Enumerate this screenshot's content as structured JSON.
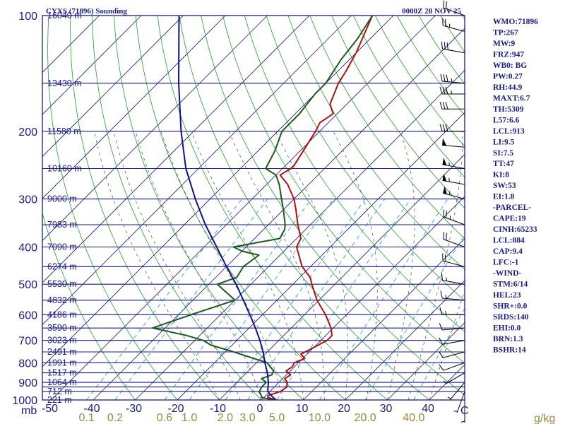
{
  "header": {
    "station_title": "CYXS (71896) Sounding",
    "datetime": "0000Z 28 NOV 25"
  },
  "indices": [
    "WMO:71896",
    "TP:267",
    "MW:9",
    "FRZ:947",
    "WB0: BG",
    "PW:0.27",
    "RH:44.9",
    "MAXT:6.7",
    "TH:5309",
    "L57:6.6",
    "LCL:913",
    "LI:9.5",
    "SI:7.5",
    "TT:47",
    "KI:8",
    "SW:53",
    "EI:1.8",
    "-PARCEL-",
    "CAPE:19",
    "CINH:65233",
    "LCL:884",
    "CAP:9.4",
    "LFC:-1",
    "-WIND-",
    "STM:6/14",
    "HEL:23",
    "SHR+:0.0",
    "SRDS:140",
    "EHI:0.0",
    "BRN:1.3",
    "BSHR:14"
  ],
  "chart_data": {
    "type": "skew-t log-p",
    "pressure_labels": [
      "100",
      "200",
      "300",
      "400",
      "500",
      "600",
      "700",
      "800",
      "900",
      "1000"
    ],
    "pressure_levels": [
      100,
      150,
      200,
      250,
      300,
      350,
      400,
      450,
      500,
      550,
      600,
      650,
      700,
      750,
      800,
      850,
      900,
      925,
      950,
      1000
    ],
    "y_unit_label": "mb",
    "height_labels": [
      {
        "p": 100,
        "text": "16040 m"
      },
      {
        "p": 150,
        "text": "13430 m"
      },
      {
        "p": 200,
        "text": "11580 m"
      },
      {
        "p": 250,
        "text": "10160 m"
      },
      {
        "p": 300,
        "text": "9000 m"
      },
      {
        "p": 350,
        "text": "7983 m"
      },
      {
        "p": 400,
        "text": "7090 m"
      },
      {
        "p": 450,
        "text": "6274 m"
      },
      {
        "p": 500,
        "text": "5530 m"
      },
      {
        "p": 550,
        "text": "4832 m"
      },
      {
        "p": 600,
        "text": "4186 m"
      },
      {
        "p": 650,
        "text": "3590 m"
      },
      {
        "p": 700,
        "text": "3023 m"
      },
      {
        "p": 750,
        "text": "2491 m"
      },
      {
        "p": 800,
        "text": "1991 m"
      },
      {
        "p": 850,
        "text": "1517 m"
      },
      {
        "p": 900,
        "text": "1064 m"
      },
      {
        "p": 950,
        "text": "712 m"
      },
      {
        "p": 1000,
        "text": "221 m"
      }
    ],
    "temperature_ticks": [
      "-50",
      "-40",
      "-30",
      "-20",
      "-10",
      "0",
      "10",
      "20",
      "30",
      "40"
    ],
    "temperature_tick_values": [
      -50,
      -40,
      -30,
      -20,
      -10,
      0,
      10,
      20,
      30,
      40
    ],
    "x_unit_label": "C",
    "mixing_ratio_ticks": [
      {
        "w": 0.1,
        "text": "0.1"
      },
      {
        "w": 0.2,
        "text": "0.2"
      },
      {
        "w": 0.6,
        "text": "0.6"
      },
      {
        "w": 1.0,
        "text": "1.0"
      },
      {
        "w": 2.0,
        "text": "2.0"
      },
      {
        "w": 3.0,
        "text": "3.0"
      },
      {
        "w": 5.0,
        "text": "5.0"
      },
      {
        "w": 10.0,
        "text": "10.0"
      },
      {
        "w": 20.0,
        "text": "20.0"
      },
      {
        "w": 40.0,
        "text": "40.0"
      }
    ],
    "mixing_ratio_unit": "g/kg",
    "xlim": [
      -50,
      50
    ],
    "ylim": [
      1000,
      100
    ],
    "series": [
      {
        "name": "temperature",
        "color": "#b01010",
        "points": [
          [
            1000,
            3.5
          ],
          [
            985,
            1.0
          ],
          [
            975,
            0.5
          ],
          [
            950,
            2.5
          ],
          [
            925,
            3.0
          ],
          [
            900,
            2.0
          ],
          [
            880,
            0.5
          ],
          [
            860,
            1.0
          ],
          [
            840,
            -1.0
          ],
          [
            820,
            -0.5
          ],
          [
            800,
            -1.0
          ],
          [
            780,
            0.5
          ],
          [
            760,
            -1.5
          ],
          [
            740,
            -0.5
          ],
          [
            700,
            1.5
          ],
          [
            680,
            1.5
          ],
          [
            650,
            -0.5
          ],
          [
            600,
            -5.0
          ],
          [
            550,
            -10.5
          ],
          [
            500,
            -15.5
          ],
          [
            480,
            -17.5
          ],
          [
            450,
            -22.0
          ],
          [
            420,
            -25.5
          ],
          [
            400,
            -28.0
          ],
          [
            380,
            -29.0
          ],
          [
            350,
            -33.0
          ],
          [
            320,
            -37.0
          ],
          [
            300,
            -40.0
          ],
          [
            275,
            -45.0
          ],
          [
            260,
            -49.0
          ],
          [
            250,
            -48.0
          ],
          [
            245,
            -48.0
          ],
          [
            200,
            -51.0
          ],
          [
            190,
            -52.0
          ],
          [
            180,
            -51.0
          ],
          [
            170,
            -54.0
          ],
          [
            150,
            -57.0
          ],
          [
            140,
            -58.0
          ],
          [
            125,
            -60.0
          ],
          [
            100,
            -65.0
          ]
        ]
      },
      {
        "name": "dewpoint",
        "color": "#1a5a1a",
        "points": [
          [
            1000,
            3.0
          ],
          [
            985,
            -0.5
          ],
          [
            975,
            -1.0
          ],
          [
            950,
            -2.5
          ],
          [
            925,
            -3.0
          ],
          [
            900,
            -3.0
          ],
          [
            880,
            -5.0
          ],
          [
            860,
            -3.5
          ],
          [
            840,
            -4.0
          ],
          [
            800,
            -7.5
          ],
          [
            750,
            -18.0
          ],
          [
            720,
            -25.0
          ],
          [
            700,
            -28.0
          ],
          [
            680,
            -33.0
          ],
          [
            650,
            -43.0
          ],
          [
            600,
            -37.0
          ],
          [
            550,
            -30.0
          ],
          [
            500,
            -38.0
          ],
          [
            480,
            -35.0
          ],
          [
            450,
            -36.0
          ],
          [
            420,
            -35.0
          ],
          [
            410,
            -40.0
          ],
          [
            400,
            -43.0
          ],
          [
            380,
            -34.0
          ],
          [
            360,
            -35.0
          ],
          [
            350,
            -36.0
          ],
          [
            320,
            -40.0
          ],
          [
            300,
            -43.0
          ],
          [
            275,
            -47.0
          ],
          [
            260,
            -50.0
          ],
          [
            250,
            -54.0
          ],
          [
            225,
            -56.0
          ],
          [
            200,
            -59.0
          ],
          [
            180,
            -59.0
          ],
          [
            160,
            -60.0
          ],
          [
            150,
            -60.0
          ],
          [
            130,
            -62.0
          ],
          [
            115,
            -63.0
          ],
          [
            100,
            -65.0
          ]
        ]
      },
      {
        "name": "parcel",
        "color": "#10108a",
        "points": [
          [
            1000,
            3.5
          ],
          [
            970,
            1.0
          ],
          [
            950,
            -0.5
          ],
          [
            925,
            -1.5
          ],
          [
            900,
            -2.5
          ],
          [
            850,
            -5.0
          ],
          [
            800,
            -8.0
          ],
          [
            750,
            -11.0
          ],
          [
            700,
            -14.5
          ],
          [
            650,
            -18.5
          ],
          [
            600,
            -23.0
          ],
          [
            550,
            -28.0
          ],
          [
            500,
            -33.5
          ],
          [
            450,
            -40.0
          ],
          [
            400,
            -47.0
          ],
          [
            350,
            -55.0
          ],
          [
            300,
            -63.5
          ],
          [
            250,
            -73.0
          ],
          [
            200,
            -83.0
          ],
          [
            150,
            -95.0
          ],
          [
            100,
            -111.0
          ]
        ]
      }
    ],
    "wind_barbs": [
      {
        "p": 100,
        "dir": 290,
        "kt": 20
      },
      {
        "p": 110,
        "dir": 285,
        "kt": 25
      },
      {
        "p": 125,
        "dir": 280,
        "kt": 30
      },
      {
        "p": 150,
        "dir": 275,
        "kt": 35
      },
      {
        "p": 160,
        "dir": 270,
        "kt": 35
      },
      {
        "p": 175,
        "dir": 270,
        "kt": 30
      },
      {
        "p": 200,
        "dir": 270,
        "kt": 30
      },
      {
        "p": 220,
        "dir": 275,
        "kt": 50
      },
      {
        "p": 250,
        "dir": 280,
        "kt": 55
      },
      {
        "p": 275,
        "dir": 280,
        "kt": 55
      },
      {
        "p": 300,
        "dir": 285,
        "kt": 55
      },
      {
        "p": 350,
        "dir": 290,
        "kt": 25
      },
      {
        "p": 400,
        "dir": 290,
        "kt": 20
      },
      {
        "p": 450,
        "dir": 285,
        "kt": 20
      },
      {
        "p": 500,
        "dir": 280,
        "kt": 15
      },
      {
        "p": 550,
        "dir": 275,
        "kt": 15
      },
      {
        "p": 600,
        "dir": 270,
        "kt": 15
      },
      {
        "p": 650,
        "dir": 265,
        "kt": 10
      },
      {
        "p": 700,
        "dir": 260,
        "kt": 10
      },
      {
        "p": 750,
        "dir": 255,
        "kt": 10
      },
      {
        "p": 800,
        "dir": 250,
        "kt": 10
      },
      {
        "p": 850,
        "dir": 240,
        "kt": 5
      },
      {
        "p": 900,
        "dir": 220,
        "kt": 5
      },
      {
        "p": 950,
        "dir": 200,
        "kt": 5
      },
      {
        "p": 1000,
        "dir": 180,
        "kt": 5
      }
    ],
    "colors": {
      "isobar": "#1a1a8a",
      "isotherm": "#1a1a8a",
      "dry_adiabat": "#22a022",
      "moist_adiabat": "#4a4a4a",
      "mixing_ratio": "#2a9fd0",
      "frame": "#1a1a8a",
      "label": "#1a1a8a",
      "mixing_label": "#9a8a3a"
    }
  }
}
